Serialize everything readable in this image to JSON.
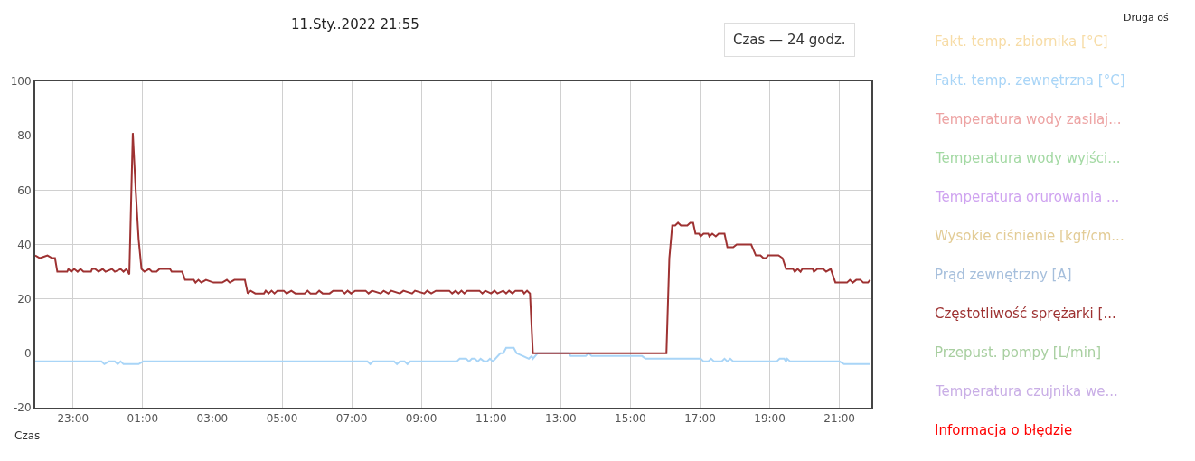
{
  "chart_data": {
    "type": "line",
    "title": "11.Sty..2022 21:55",
    "xlabel": "Czas",
    "annotations": [
      "Czas — 24 godz.",
      "Druga oś"
    ],
    "xlim": [
      "2022-01-10T21:55",
      "2022-01-11T21:55"
    ],
    "xticks": [
      {
        "value": "2022-01-10T23:00",
        "label": "23:00"
      },
      {
        "value": "2022-01-11T01:00",
        "label": "01:00"
      },
      {
        "value": "2022-01-11T03:00",
        "label": "03:00"
      },
      {
        "value": "2022-01-11T05:00",
        "label": "05:00"
      },
      {
        "value": "2022-01-11T07:00",
        "label": "07:00"
      },
      {
        "value": "2022-01-11T09:00",
        "label": "09:00"
      },
      {
        "value": "2022-01-11T11:00",
        "label": "11:00"
      },
      {
        "value": "2022-01-11T13:00",
        "label": "13:00"
      },
      {
        "value": "2022-01-11T15:00",
        "label": "15:00"
      },
      {
        "value": "2022-01-11T17:00",
        "label": "17:00"
      },
      {
        "value": "2022-01-11T19:00",
        "label": "19:00"
      },
      {
        "value": "2022-01-11T21:00",
        "label": "21:00"
      }
    ],
    "ylim": [
      -20,
      100
    ],
    "yticks": [
      -20,
      0,
      20,
      40,
      60,
      80,
      100
    ],
    "grid": true,
    "legend": "right",
    "line_style": "solid",
    "series": [
      {
        "name": "Fakt. temp. zbiornika [°C]",
        "color": "#f7dca6"
      },
      {
        "name": "Fakt. temp. zewnętrzna [°C]",
        "color": "#a9d5f7",
        "x": [
          "2022-01-10T21:55",
          "2022-01-10T23:49",
          "2022-01-10T23:54",
          "2022-01-11T00:02",
          "2022-01-11T00:12",
          "2022-01-11T00:17",
          "2022-01-11T00:22",
          "2022-01-11T00:27",
          "2022-01-11T00:53",
          "2022-01-11T01:01",
          "2022-01-11T07:27",
          "2022-01-11T07:32",
          "2022-01-11T07:37",
          "2022-01-11T08:13",
          "2022-01-11T08:18",
          "2022-01-11T08:23",
          "2022-01-11T08:31",
          "2022-01-11T08:36",
          "2022-01-11T08:41",
          "2022-01-11T10:01",
          "2022-01-11T10:06",
          "2022-01-11T10:17",
          "2022-01-11T10:22",
          "2022-01-11T10:27",
          "2022-01-11T10:32",
          "2022-01-11T10:37",
          "2022-01-11T10:42",
          "2022-01-11T10:48",
          "2022-01-11T10:53",
          "2022-01-11T10:58",
          "2022-01-11T11:03",
          "2022-01-11T11:16",
          "2022-01-11T11:21",
          "2022-01-11T11:26",
          "2022-01-11T11:39",
          "2022-01-11T11:44",
          "2022-01-11T11:55",
          "2022-01-11T12:05",
          "2022-01-11T12:10",
          "2022-01-11T12:12",
          "2022-01-11T12:20",
          "2022-01-11T13:14",
          "2022-01-11T13:17",
          "2022-01-11T13:43",
          "2022-01-11T13:48",
          "2022-01-11T13:53",
          "2022-01-11T15:20",
          "2022-01-11T15:26",
          "2022-01-11T17:01",
          "2022-01-11T17:06",
          "2022-01-11T17:14",
          "2022-01-11T17:19",
          "2022-01-11T17:24",
          "2022-01-11T17:37",
          "2022-01-11T17:42",
          "2022-01-11T17:47",
          "2022-01-11T17:52",
          "2022-01-11T17:57",
          "2022-01-11T19:12",
          "2022-01-11T19:17",
          "2022-01-11T19:25",
          "2022-01-11T19:28",
          "2022-01-11T19:30",
          "2022-01-11T19:35",
          "2022-01-11T21:00",
          "2022-01-11T21:08",
          "2022-01-11T21:53"
        ],
        "values": [
          -3,
          -3,
          -4,
          -3,
          -3,
          -4,
          -3,
          -4,
          -4,
          -3,
          -3,
          -4,
          -3,
          -3,
          -4,
          -3,
          -3,
          -4,
          -3,
          -3,
          -2,
          -2,
          -3,
          -2,
          -2,
          -3,
          -2,
          -3,
          -3,
          -2,
          -3,
          0,
          0,
          2,
          2,
          0,
          -1,
          -2,
          -1,
          -2,
          0,
          0,
          -1,
          -1,
          0,
          -1,
          -1,
          -2,
          -2,
          -3,
          -3,
          -2,
          -3,
          -3,
          -2,
          -3,
          -2,
          -3,
          -3,
          -2,
          -2,
          -3,
          -2,
          -3,
          -3,
          -4,
          -4
        ]
      },
      {
        "name": "Temperatura wody zasilaj...",
        "color": "#eda3a3"
      },
      {
        "name": "Temperatura wody wyjści...",
        "color": "#a3d9a3"
      },
      {
        "name": "Temperatura orurowania ...",
        "color": "#cfa3f0"
      },
      {
        "name": "Wysokie ciśnienie [kgf/cm...",
        "color": "#e3cc96"
      },
      {
        "name": "Prąd zewnętrzny [A]",
        "color": "#a6bfdc"
      },
      {
        "name": "Częstotliwość sprężarki [...",
        "color": "#9e3232",
        "x": [
          "2022-01-10T21:55",
          "2022-01-10T22:03",
          "2022-01-10T22:16",
          "2022-01-10T22:24",
          "2022-01-10T22:29",
          "2022-01-10T22:33",
          "2022-01-10T22:50",
          "2022-01-10T22:52",
          "2022-01-10T22:57",
          "2022-01-10T23:02",
          "2022-01-10T23:08",
          "2022-01-10T23:13",
          "2022-01-10T23:18",
          "2022-01-10T23:31",
          "2022-01-10T23:33",
          "2022-01-10T23:38",
          "2022-01-10T23:44",
          "2022-01-10T23:51",
          "2022-01-10T23:56",
          "2022-01-11T00:07",
          "2022-01-11T00:12",
          "2022-01-11T00:22",
          "2022-01-11T00:27",
          "2022-01-11T00:32",
          "2022-01-11T00:37",
          "2022-01-11T00:43",
          "2022-01-11T00:48",
          "2022-01-11T00:53",
          "2022-01-11T00:58",
          "2022-01-11T01:03",
          "2022-01-11T01:11",
          "2022-01-11T01:16",
          "2022-01-11T01:24",
          "2022-01-11T01:29",
          "2022-01-11T01:47",
          "2022-01-11T01:50",
          "2022-01-11T02:08",
          "2022-01-11T02:13",
          "2022-01-11T02:28",
          "2022-01-11T02:31",
          "2022-01-11T02:36",
          "2022-01-11T02:41",
          "2022-01-11T02:49",
          "2022-01-11T03:02",
          "2022-01-11T03:17",
          "2022-01-11T03:25",
          "2022-01-11T03:30",
          "2022-01-11T03:38",
          "2022-01-11T03:56",
          "2022-01-11T04:01",
          "2022-01-11T04:06",
          "2022-01-11T04:14",
          "2022-01-11T04:29",
          "2022-01-11T04:32",
          "2022-01-11T04:37",
          "2022-01-11T04:42",
          "2022-01-11T04:47",
          "2022-01-11T04:52",
          "2022-01-11T05:03",
          "2022-01-11T05:08",
          "2022-01-11T05:16",
          "2022-01-11T05:23",
          "2022-01-11T05:39",
          "2022-01-11T05:44",
          "2022-01-11T05:49",
          "2022-01-11T05:59",
          "2022-01-11T06:04",
          "2022-01-11T06:10",
          "2022-01-11T06:22",
          "2022-01-11T06:28",
          "2022-01-11T06:43",
          "2022-01-11T06:48",
          "2022-01-11T06:53",
          "2022-01-11T06:59",
          "2022-01-11T07:06",
          "2022-01-11T07:24",
          "2022-01-11T07:29",
          "2022-01-11T07:35",
          "2022-01-11T07:50",
          "2022-01-11T07:55",
          "2022-01-11T08:03",
          "2022-01-11T08:08",
          "2022-01-11T08:23",
          "2022-01-11T08:29",
          "2022-01-11T08:44",
          "2022-01-11T08:49",
          "2022-01-11T09:05",
          "2022-01-11T09:10",
          "2022-01-11T09:17",
          "2022-01-11T09:25",
          "2022-01-11T09:48",
          "2022-01-11T09:53",
          "2022-01-11T09:59",
          "2022-01-11T10:04",
          "2022-01-11T10:09",
          "2022-01-11T10:14",
          "2022-01-11T10:19",
          "2022-01-11T10:40",
          "2022-01-11T10:45",
          "2022-01-11T10:50",
          "2022-01-11T11:00",
          "2022-01-11T11:06",
          "2022-01-11T11:11",
          "2022-01-11T11:21",
          "2022-01-11T11:26",
          "2022-01-11T11:31",
          "2022-01-11T11:37",
          "2022-01-11T11:42",
          "2022-01-11T11:54",
          "2022-01-11T11:57",
          "2022-01-11T12:02",
          "2022-01-11T12:07",
          "2022-01-11T12:12",
          "2022-01-11T16:02",
          "2022-01-11T16:07",
          "2022-01-11T16:12",
          "2022-01-11T16:17",
          "2022-01-11T16:22",
          "2022-01-11T16:27",
          "2022-01-11T16:38",
          "2022-01-11T16:43",
          "2022-01-11T16:48",
          "2022-01-11T16:52",
          "2022-01-11T16:58",
          "2022-01-11T17:01",
          "2022-01-11T17:06",
          "2022-01-11T17:14",
          "2022-01-11T17:16",
          "2022-01-11T17:21",
          "2022-01-11T17:27",
          "2022-01-11T17:32",
          "2022-01-11T17:42",
          "2022-01-11T17:47",
          "2022-01-11T17:57",
          "2022-01-11T18:03",
          "2022-01-11T18:28",
          "2022-01-11T18:36",
          "2022-01-11T18:44",
          "2022-01-11T18:49",
          "2022-01-11T18:54",
          "2022-01-11T18:57",
          "2022-01-11T19:15",
          "2022-01-11T19:22",
          "2022-01-11T19:28",
          "2022-01-11T19:40",
          "2022-01-11T19:43",
          "2022-01-11T19:48",
          "2022-01-11T19:53",
          "2022-01-11T19:56",
          "2022-01-11T20:14",
          "2022-01-11T20:16",
          "2022-01-11T20:22",
          "2022-01-11T20:32",
          "2022-01-11T20:37",
          "2022-01-11T20:45",
          "2022-01-11T20:53",
          "2022-01-11T21:13",
          "2022-01-11T21:18",
          "2022-01-11T21:23",
          "2022-01-11T21:29",
          "2022-01-11T21:36",
          "2022-01-11T21:41",
          "2022-01-11T21:49",
          "2022-01-11T21:53"
        ],
        "values": [
          36,
          35,
          36,
          35,
          35,
          30,
          30,
          31,
          30,
          31,
          30,
          31,
          30,
          30,
          31,
          31,
          30,
          31,
          30,
          31,
          30,
          31,
          30,
          31,
          29,
          81,
          60,
          42,
          31,
          30,
          31,
          30,
          30,
          31,
          31,
          30,
          30,
          27,
          27,
          26,
          27,
          26,
          27,
          26,
          26,
          27,
          26,
          27,
          27,
          22,
          23,
          22,
          22,
          23,
          22,
          23,
          22,
          23,
          23,
          22,
          23,
          22,
          22,
          23,
          22,
          22,
          23,
          22,
          22,
          23,
          23,
          22,
          23,
          22,
          23,
          23,
          22,
          23,
          22,
          23,
          22,
          23,
          22,
          23,
          22,
          23,
          22,
          23,
          22,
          23,
          23,
          22,
          23,
          22,
          23,
          22,
          23,
          23,
          22,
          23,
          22,
          23,
          22,
          23,
          22,
          23,
          22,
          23,
          23,
          22,
          23,
          22,
          0,
          0,
          35,
          47,
          47,
          48,
          47,
          47,
          48,
          48,
          44,
          44,
          43,
          44,
          44,
          43,
          44,
          43,
          44,
          44,
          39,
          39,
          40,
          40,
          36,
          36,
          35,
          35,
          36,
          36,
          35,
          31,
          31,
          30,
          31,
          30,
          31,
          31,
          30,
          31,
          31,
          30,
          31,
          26,
          26,
          27,
          26,
          27,
          27,
          26,
          26,
          27
        ]
      },
      {
        "name": "Przepust. pompy [L/min]",
        "color": "#a8cfa0"
      },
      {
        "name": "Temperatura czujnika we...",
        "color": "#c9aee6"
      },
      {
        "name": "Informacja o błędzie",
        "color": "#ff0000"
      }
    ]
  }
}
